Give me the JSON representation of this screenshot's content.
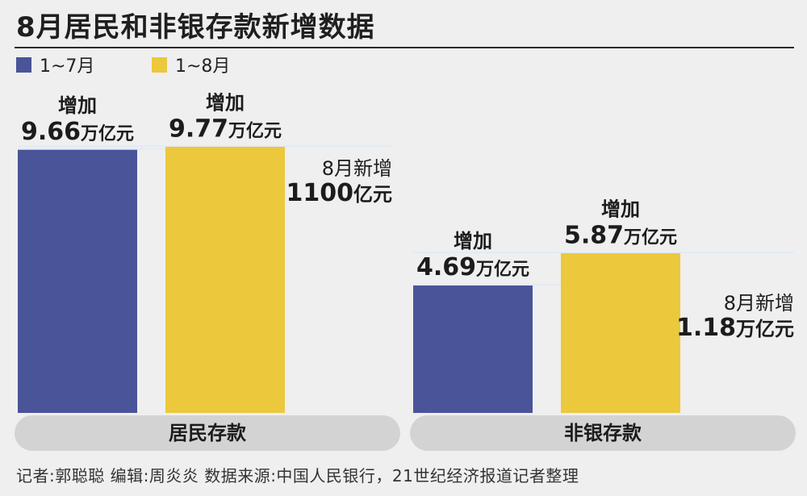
{
  "title": "8月居民和非银存款新增数据",
  "legend": [
    {
      "label": "1~7月",
      "color": "#4a5499"
    },
    {
      "label": "1~8月",
      "color": "#ecc83d"
    }
  ],
  "colors": {
    "band": "#d3d3d3",
    "background": "#efefef"
  },
  "chart_data": [
    {
      "type": "bar",
      "category": "居民存款",
      "unit": "万亿元",
      "series": [
        {
          "name": "1~7月",
          "value": 9.66,
          "label_top": "增加",
          "label_value": "9.66",
          "label_unit": "万亿元"
        },
        {
          "name": "1~8月",
          "value": 9.77,
          "label_top": "增加",
          "label_value": "9.77",
          "label_unit": "万亿元"
        }
      ],
      "annotation": {
        "line1": "8月新增",
        "value": "1100",
        "unit": "亿元"
      }
    },
    {
      "type": "bar",
      "category": "非银存款",
      "unit": "万亿元",
      "series": [
        {
          "name": "1~7月",
          "value": 4.69,
          "label_top": "增加",
          "label_value": "4.69",
          "label_unit": "万亿元"
        },
        {
          "name": "1~8月",
          "value": 5.87,
          "label_top": "增加",
          "label_value": "5.87",
          "label_unit": "万亿元"
        }
      ],
      "annotation": {
        "line1": "8月新增",
        "value": "1.18",
        "unit": "万亿元"
      }
    }
  ],
  "source": "记者:郭聪聪   编辑:周炎炎   数据来源:中国人民银行，21世纪经济报道记者整理"
}
